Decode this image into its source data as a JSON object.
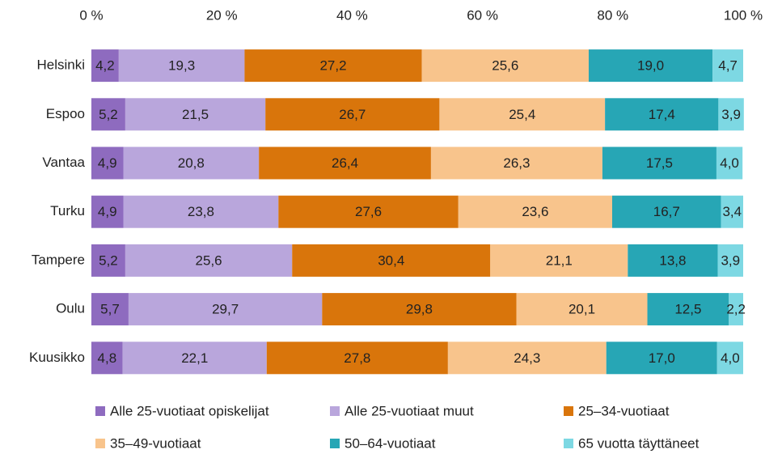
{
  "chart_data": {
    "type": "stacked-bar-horizontal",
    "categories": [
      "Helsinki",
      "Espoo",
      "Vantaa",
      "Turku",
      "Tampere",
      "Oulu",
      "Kuusikko"
    ],
    "xlim": [
      0,
      100
    ],
    "xticks": [
      {
        "value": 0,
        "label": "0 %"
      },
      {
        "value": 20,
        "label": "20 %"
      },
      {
        "value": 40,
        "label": "40 %"
      },
      {
        "value": 60,
        "label": "60 %"
      },
      {
        "value": 80,
        "label": "80 %"
      },
      {
        "value": 100,
        "label": "100 %"
      }
    ],
    "series": [
      {
        "name": "Alle 25-vuotiaat opiskelijat",
        "color": "#8e6bbf",
        "values": [
          4.2,
          5.2,
          4.9,
          4.9,
          5.2,
          5.7,
          4.8
        ],
        "value_labels": [
          "4,2",
          "5,2",
          "4,9",
          "4,9",
          "5,2",
          "5,7",
          "4,8"
        ]
      },
      {
        "name": "Alle 25-vuotiaat muut",
        "color": "#b9a6dc",
        "values": [
          19.3,
          21.5,
          20.8,
          23.8,
          25.6,
          29.7,
          22.1
        ],
        "value_labels": [
          "19,3",
          "21,5",
          "20,8",
          "23,8",
          "25,6",
          "29,7",
          "22,1"
        ]
      },
      {
        "name": "25–34-vuotiaat",
        "color": "#d9750b",
        "values": [
          27.2,
          26.7,
          26.4,
          27.6,
          30.4,
          29.8,
          27.8
        ],
        "value_labels": [
          "27,2",
          "26,7",
          "26,4",
          "27,6",
          "30,4",
          "29,8",
          "27,8"
        ]
      },
      {
        "name": "35–49-vuotiaat",
        "color": "#f8c48c",
        "values": [
          25.6,
          25.4,
          26.3,
          23.6,
          21.1,
          20.1,
          24.3
        ],
        "value_labels": [
          "25,6",
          "25,4",
          "26,3",
          "23,6",
          "21,1",
          "20,1",
          "24,3"
        ]
      },
      {
        "name": "50–64-vuotiaat",
        "color": "#27a6b5",
        "values": [
          19.0,
          17.4,
          17.5,
          16.7,
          13.8,
          12.5,
          17.0
        ],
        "value_labels": [
          "19,0",
          "17,4",
          "17,5",
          "16,7",
          "13,8",
          "12,5",
          "17,0"
        ]
      },
      {
        "name": "65 vuotta täyttäneet",
        "color": "#7dd8e3",
        "values": [
          4.7,
          3.9,
          4.0,
          3.4,
          3.9,
          2.2,
          4.0
        ],
        "value_labels": [
          "4,7",
          "3,9",
          "4,0",
          "3,4",
          "3,9",
          "2,2",
          "4,0"
        ]
      }
    ]
  }
}
